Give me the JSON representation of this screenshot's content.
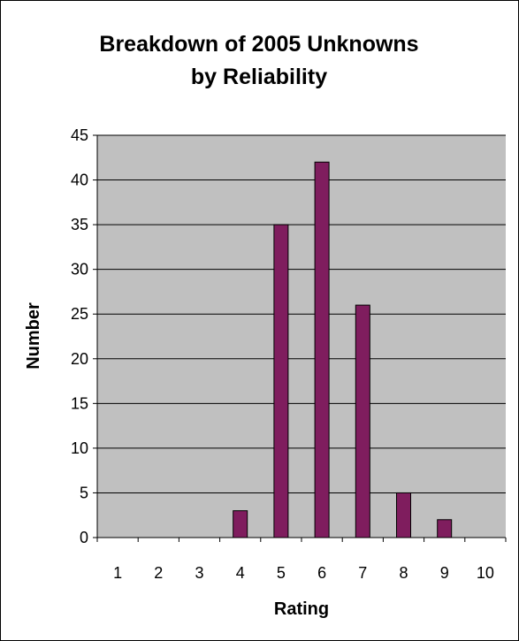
{
  "chart_data": {
    "type": "bar",
    "title_lines": [
      "Breakdown of 2005 Unknowns",
      "by Reliability"
    ],
    "xlabel": "Rating",
    "ylabel": "Number",
    "categories": [
      "1",
      "2",
      "3",
      "4",
      "5",
      "6",
      "7",
      "8",
      "9",
      "10"
    ],
    "values": [
      0,
      0,
      0,
      3,
      35,
      42,
      26,
      5,
      2,
      0
    ],
    "ylim": [
      0,
      45
    ],
    "yticks": [
      0,
      5,
      10,
      15,
      20,
      25,
      30,
      35,
      40,
      45
    ],
    "grid": true,
    "legend": "none",
    "colors": {
      "bar_fill": "#7f1d5e",
      "bar_stroke": "#000000",
      "plot_background": "#c0c0c0",
      "gridline": "#000000"
    }
  }
}
